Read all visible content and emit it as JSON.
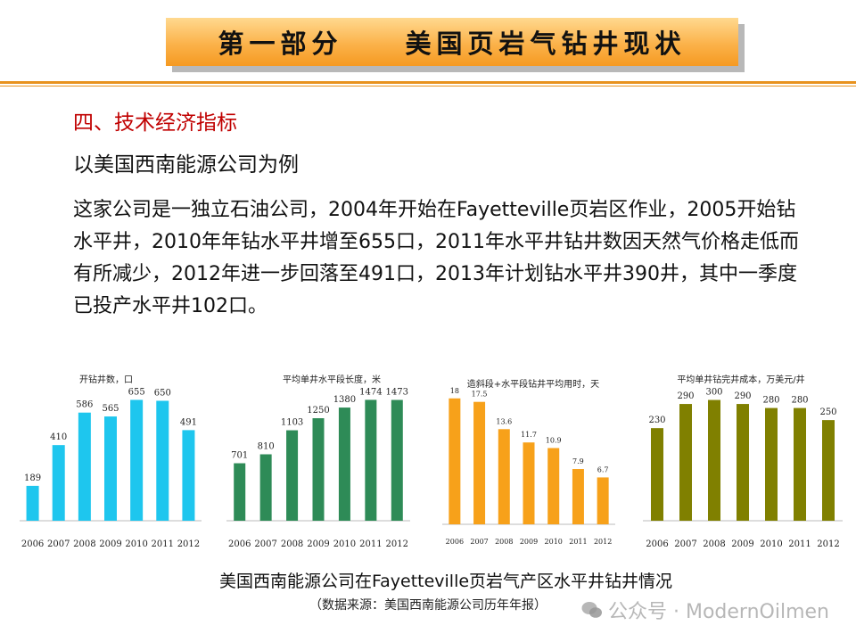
{
  "banner": {
    "part": "第一部分",
    "topic": "美国页岩气钻井现状"
  },
  "section_heading": "四、技术经济指标",
  "subheading": "以美国西南能源公司为例",
  "body_text": "这家公司是一独立石油公司，2004年开始在Fayetteville页岩区作业，2005开始钻水平井，2010年年钻水平井增至655口，2011年水平井钻井数因天然气价格走低而有所减少，2012年进一步回落至491口，2013年计划钻水平井390井，其中一季度已投产水平井102口。",
  "caption": "美国西南能源公司在Fayetteville页岩气产区水平井钻井情况",
  "source_note": "（数据来源：美国西南能源公司历年年报）",
  "watermark": "公众号 · ModernOilmen",
  "colors": {
    "chart1": "#1ec6ee",
    "chart2": "#2e8b57",
    "chart3": "#f7a11a",
    "chart4": "#808000",
    "heading": "#c00000",
    "rule": "#e8921e"
  },
  "chart_data": [
    {
      "type": "bar",
      "title": "开钻井数，口",
      "categories": [
        "2006",
        "2007",
        "2008",
        "2009",
        "2010",
        "2011",
        "2012"
      ],
      "values": [
        189,
        410,
        586,
        565,
        655,
        650,
        491
      ],
      "labels": [
        "189",
        "410",
        "586",
        "565",
        "655",
        "650",
        "491"
      ],
      "ylim": [
        0,
        720
      ]
    },
    {
      "type": "bar",
      "title": "平均单井水平段长度，米",
      "categories": [
        "2006",
        "2007",
        "2008",
        "2009",
        "2010",
        "2011",
        "2012"
      ],
      "values": [
        701,
        810,
        1103,
        1250,
        1380,
        1474,
        1473
      ],
      "labels": [
        "701",
        "810",
        "1103",
        "1250",
        "1380",
        "1474",
        "1473"
      ],
      "ylim": [
        0,
        1620
      ]
    },
    {
      "type": "bar",
      "title": "造斜段+水平段钻井平均用时，天",
      "categories": [
        "2006",
        "2007",
        "2008",
        "2009",
        "2010",
        "2011",
        "2012"
      ],
      "values": [
        18,
        17.5,
        13.6,
        11.7,
        10.9,
        7.9,
        6.7
      ],
      "labels": [
        "18",
        "17.5",
        "13.6",
        "11.7",
        "10.9",
        "7.9",
        "6.7"
      ],
      "ylim": [
        0,
        19.5
      ]
    },
    {
      "type": "bar",
      "title": "平均单井钻完井成本，万美元/井",
      "categories": [
        "2006",
        "2007",
        "2008",
        "2009",
        "2010",
        "2011",
        "2012"
      ],
      "values": [
        230,
        290,
        300,
        290,
        280,
        280,
        250
      ],
      "labels": [
        "230",
        "290",
        "300",
        "290",
        "280",
        "280",
        "250"
      ],
      "ylim": [
        0,
        330
      ]
    }
  ]
}
